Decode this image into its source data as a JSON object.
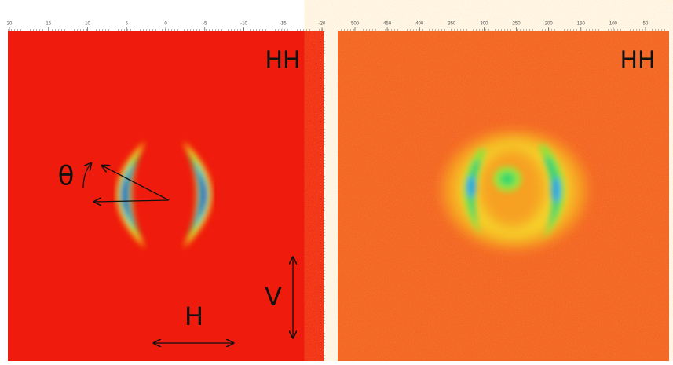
{
  "panels": [
    {
      "label": "HH",
      "top_ticks": [
        "20",
        "15",
        "10",
        "5",
        "0",
        "-5",
        "-10",
        "-15",
        "-20"
      ],
      "annotations": {
        "theta": "θ",
        "horizontal": "H",
        "vertical": "V"
      }
    },
    {
      "label": "HH",
      "top_ticks": [
        "500",
        "450",
        "400",
        "350",
        "300",
        "250",
        "200",
        "150",
        "100",
        "50"
      ]
    }
  ]
}
